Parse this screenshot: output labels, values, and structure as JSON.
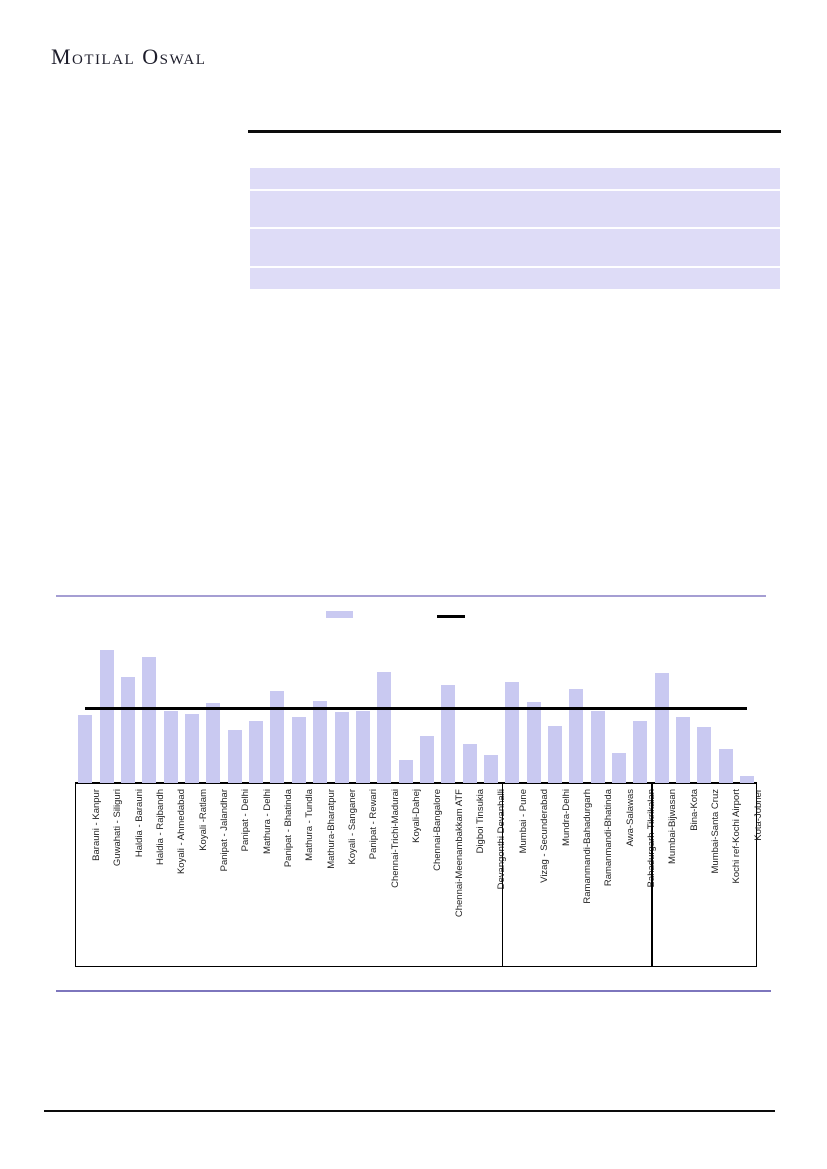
{
  "brand": {
    "name": "Motilal Oswal"
  },
  "summary_box": {
    "visible_text": "",
    "row_count": 4
  },
  "legend": [
    {
      "swatch": "bar",
      "color": "#c9c9f1",
      "label": ""
    },
    {
      "swatch": "line",
      "color": "#000000",
      "label": ""
    }
  ],
  "chart_data": {
    "type": "bar",
    "title": "",
    "xlabel": "",
    "ylabel": "",
    "axis_values_visible": false,
    "grid": false,
    "categories": [
      "Barauni - Kanpur",
      "Guwahati - Siliguri",
      "Haldia - Barauni",
      "Haldia - Rajbandh",
      "Koyali - Ahmedabad",
      "Koyali -Ratlam",
      "Panipat - Jalandhar",
      "Panipat - Delhi",
      "Mathura - Delhi",
      "Panipat - Bhatinda",
      "Mathura - Tundla",
      "Mathura-Bharatpur",
      "Koyali - Sanganer",
      "Panipat - Rewari",
      "Chennai-Trichi-Madurai",
      "Koyali-Dahej",
      "Chennai-Bangalore",
      "Chennai-Meenambakkam ATF",
      "Digboi Tinsukia",
      "Devangonthi Devanhalli",
      "Mumbai - Pune",
      "Vizag - Secunderabad",
      "Mundra-Delhi",
      "Ramanmandi-Bahadurgarh",
      "Ramanmandi-Bhatinda",
      "Awa-Salawas",
      "Bahadurgarh-Tikrikalan",
      "Mumbai-Bijwasan",
      "Bina-Kota",
      "Mumbai-Santa Cruz",
      "Kochi ref-Kochi Airport",
      "Kota-Jobner"
    ],
    "values": [
      68,
      133,
      106,
      126,
      72,
      69,
      80,
      53,
      62,
      92,
      66,
      82,
      71,
      72,
      111,
      23,
      47,
      98,
      39,
      28,
      101,
      81,
      57,
      94,
      72,
      30,
      62,
      110,
      66,
      56,
      34,
      7
    ],
    "average_line_value": 75,
    "group_dividers_after": [
      19,
      26
    ],
    "ylim": [
      0,
      153
    ],
    "colors": {
      "bar": "#c9c9f1",
      "average_line": "#000000"
    },
    "legend_position": "top"
  }
}
